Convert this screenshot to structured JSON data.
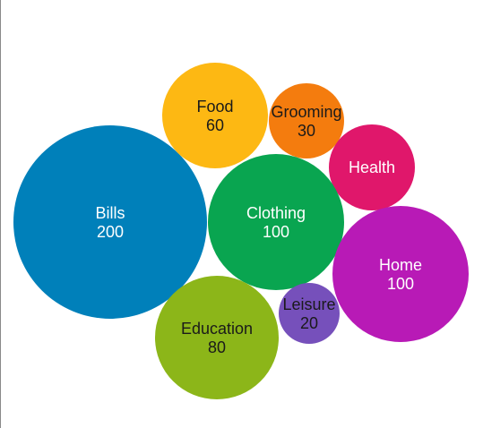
{
  "chart_data": {
    "type": "bubble",
    "title": "",
    "bubbles": [
      {
        "label": "Bills",
        "value": 200,
        "value_text": "200",
        "color": "#0080BA",
        "text_color": "#ffffff"
      },
      {
        "label": "Food",
        "value": 60,
        "value_text": "60",
        "color": "#FDB813",
        "text_color": "#1a1a1a"
      },
      {
        "label": "Grooming",
        "value": 30,
        "value_text": "30",
        "color": "#F47C0E",
        "text_color": "#1a1a1a"
      },
      {
        "label": "Health",
        "value": null,
        "value_text": "",
        "color": "#E0176B",
        "text_color": "#ffffff"
      },
      {
        "label": "Clothing",
        "value": 100,
        "value_text": "100",
        "color": "#09A550",
        "text_color": "#ffffff"
      },
      {
        "label": "Home",
        "value": 100,
        "value_text": "100",
        "color": "#B81AB6",
        "text_color": "#ffffff"
      },
      {
        "label": "Leisure",
        "value": 20,
        "value_text": "20",
        "color": "#7650BB",
        "text_color": "#1a1a1a"
      },
      {
        "label": "Education",
        "value": 80,
        "value_text": "80",
        "color": "#8CB619",
        "text_color": "#1a1a1a"
      }
    ]
  }
}
